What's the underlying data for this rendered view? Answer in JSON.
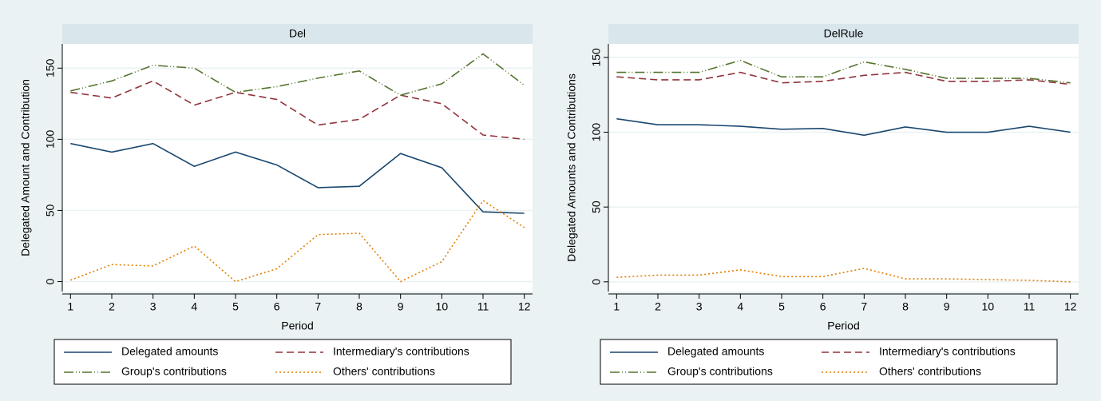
{
  "chart_data": [
    {
      "type": "line",
      "title": "Del",
      "ylabel": "Delegated Amount and Contribution",
      "xlabel": "Period",
      "x": [
        1,
        2,
        3,
        4,
        5,
        6,
        7,
        8,
        9,
        10,
        11,
        12
      ],
      "xlim": [
        0.8,
        12.2
      ],
      "xticks": [
        1,
        2,
        3,
        4,
        5,
        6,
        7,
        8,
        9,
        10,
        11,
        12
      ],
      "ylim": [
        -7,
        167
      ],
      "yticks": [
        0,
        50,
        100,
        150
      ],
      "grid": true,
      "series": [
        {
          "name": "Delegated amounts",
          "color": "#1a476f",
          "line_style": "solid",
          "values": [
            97,
            91,
            97,
            81,
            91,
            82,
            66,
            67,
            90,
            80,
            49,
            48
          ]
        },
        {
          "name": "Intermediary's contributions",
          "color": "#90353b",
          "line_style": "dash",
          "values": [
            133,
            129,
            141,
            124,
            133,
            128,
            110,
            114,
            131,
            125,
            103,
            100
          ]
        },
        {
          "name": "Group's contributions",
          "color": "#55752f",
          "line_style": "longdash_dot",
          "values": [
            134,
            141,
            152,
            150,
            133,
            137,
            143,
            148,
            131,
            139,
            160,
            138
          ]
        },
        {
          "name": "Others' contributions",
          "color": "#e37e00",
          "line_style": "shortdash",
          "values": [
            1,
            12,
            11,
            25,
            0,
            9,
            33,
            34,
            0,
            14,
            57,
            38
          ]
        }
      ]
    },
    {
      "type": "line",
      "title": "DelRule",
      "ylabel": "Delegated Amounts and Contributions",
      "xlabel": "Period",
      "x": [
        1,
        2,
        3,
        4,
        5,
        6,
        7,
        8,
        9,
        10,
        11,
        12
      ],
      "xlim": [
        0.8,
        12.2
      ],
      "xticks": [
        1,
        2,
        3,
        4,
        5,
        6,
        7,
        8,
        9,
        10,
        11,
        12
      ],
      "ylim": [
        -6.5,
        159
      ],
      "yticks": [
        0,
        50,
        100,
        150
      ],
      "grid": true,
      "series": [
        {
          "name": "Delegated amounts",
          "color": "#1a476f",
          "line_style": "solid",
          "values": [
            109,
            105,
            105,
            104,
            102,
            102.5,
            98,
            103.5,
            100,
            100,
            104,
            100
          ]
        },
        {
          "name": "Intermediary's contributions",
          "color": "#90353b",
          "line_style": "dash",
          "values": [
            137,
            135,
            135,
            140,
            133,
            134,
            138,
            140,
            134,
            134,
            135,
            132
          ]
        },
        {
          "name": "Group's contributions",
          "color": "#55752f",
          "line_style": "longdash_dot",
          "values": [
            140,
            140,
            140,
            148,
            137,
            137,
            147,
            142,
            136,
            136,
            136,
            133
          ]
        },
        {
          "name": "Others' contributions",
          "color": "#e37e00",
          "line_style": "shortdash",
          "values": [
            3,
            4.5,
            4.5,
            8,
            3.5,
            3.5,
            9,
            2,
            2,
            1.5,
            1,
            0
          ]
        }
      ]
    }
  ]
}
